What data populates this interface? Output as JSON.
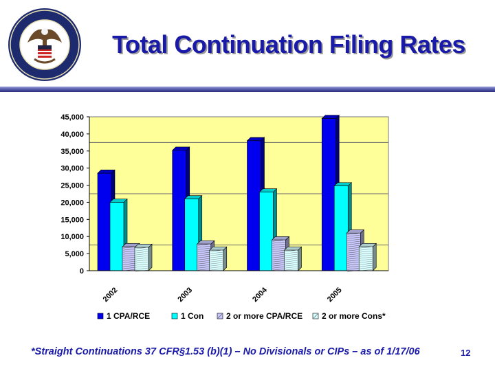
{
  "slide": {
    "title": "Total Continuation Filing Rates",
    "footnote": "*Straight Continuations 37 CFR§1.53 (b)(1) – No Divisionals or CIPs – as of 1/17/06",
    "page_number": "12",
    "seal_icon": "uspto-seal-icon"
  },
  "colors": {
    "title": "#1a1aa8",
    "plot_bg": "#ffff99",
    "series": [
      "#0000ee",
      "#00ffff",
      "#c8c8ff",
      "#d8ffff"
    ]
  },
  "chart_data": {
    "type": "bar",
    "style": "3d-clustered",
    "categories": [
      "2002",
      "2003",
      "2004",
      "2005"
    ],
    "series": [
      {
        "name": "1 CPA/RCE",
        "values": [
          28500,
          35200,
          38000,
          44500
        ]
      },
      {
        "name": "1 Con",
        "values": [
          20000,
          21000,
          23000,
          24800
        ]
      },
      {
        "name": "2 or more CPA/RCE",
        "values": [
          7000,
          7800,
          9000,
          11000
        ]
      },
      {
        "name": "2 or more Cons*",
        "values": [
          6800,
          6000,
          6000,
          7000
        ]
      }
    ],
    "ylim": [
      0,
      45000
    ],
    "yticks": [
      "0",
      "5,000",
      "10,000",
      "15,000",
      "20,000",
      "25,000",
      "30,000",
      "35,000",
      "40,000",
      "45,000"
    ],
    "grid": "horizontal at 7,500 / 22,500 / 37,500",
    "legend": "bottom"
  }
}
